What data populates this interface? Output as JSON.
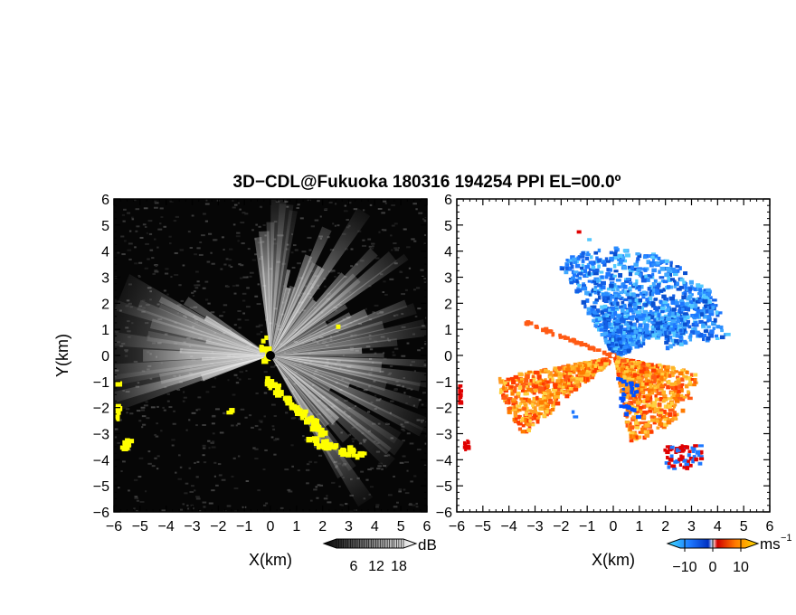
{
  "title": "3D−CDL@Fukuoka 180316 194254 PPI EL=00.0º",
  "chart_data": [
    {
      "type": "heatmap",
      "panel": "reflectivity",
      "background": "black",
      "xlabel": "X(km)",
      "ylabel": "Y(km)",
      "xlim": [
        -6,
        6
      ],
      "ylim": [
        -6,
        6
      ],
      "x_ticks": [
        "−6",
        "−5",
        "−4",
        "−3",
        "−2",
        "−1",
        "0",
        "1",
        "2",
        "3",
        "4",
        "5",
        "6"
      ],
      "y_ticks": [
        "6",
        "5",
        "4",
        "3",
        "2",
        "1",
        "0",
        "−1",
        "−2",
        "−3",
        "−4",
        "−5",
        "−6"
      ],
      "colorbar": {
        "unit": "dB",
        "ticks": [
          "6",
          "12",
          "18"
        ],
        "colormap": "grayscale"
      },
      "features": [
        {
          "kind": "beam-fan",
          "center": [
            0,
            0
          ],
          "color": "#ffffff"
        },
        {
          "kind": "highlight-region",
          "color": "#ffff00"
        }
      ]
    },
    {
      "type": "heatmap",
      "panel": "doppler-velocity",
      "background": "white",
      "xlabel": "X(km)",
      "xlim": [
        -6,
        6
      ],
      "ylim": [
        -6,
        6
      ],
      "x_ticks": [
        "−6",
        "−5",
        "−4",
        "−3",
        "−2",
        "−1",
        "0",
        "1",
        "2",
        "3",
        "4",
        "5",
        "6"
      ],
      "y_ticks": [
        "6",
        "5",
        "4",
        "3",
        "2",
        "1",
        "0",
        "−1",
        "−2",
        "−3",
        "−4",
        "−5",
        "−6"
      ],
      "colorbar": {
        "unit": "ms",
        "unit_exp": "−1",
        "ticks": [
          "−10",
          "0",
          "10"
        ],
        "colormap": "blue-white-red"
      },
      "features": [
        {
          "kind": "negative-velocity",
          "color": "#1e78ff"
        },
        {
          "kind": "positive-velocity",
          "color": "#ff5a14"
        }
      ]
    }
  ]
}
